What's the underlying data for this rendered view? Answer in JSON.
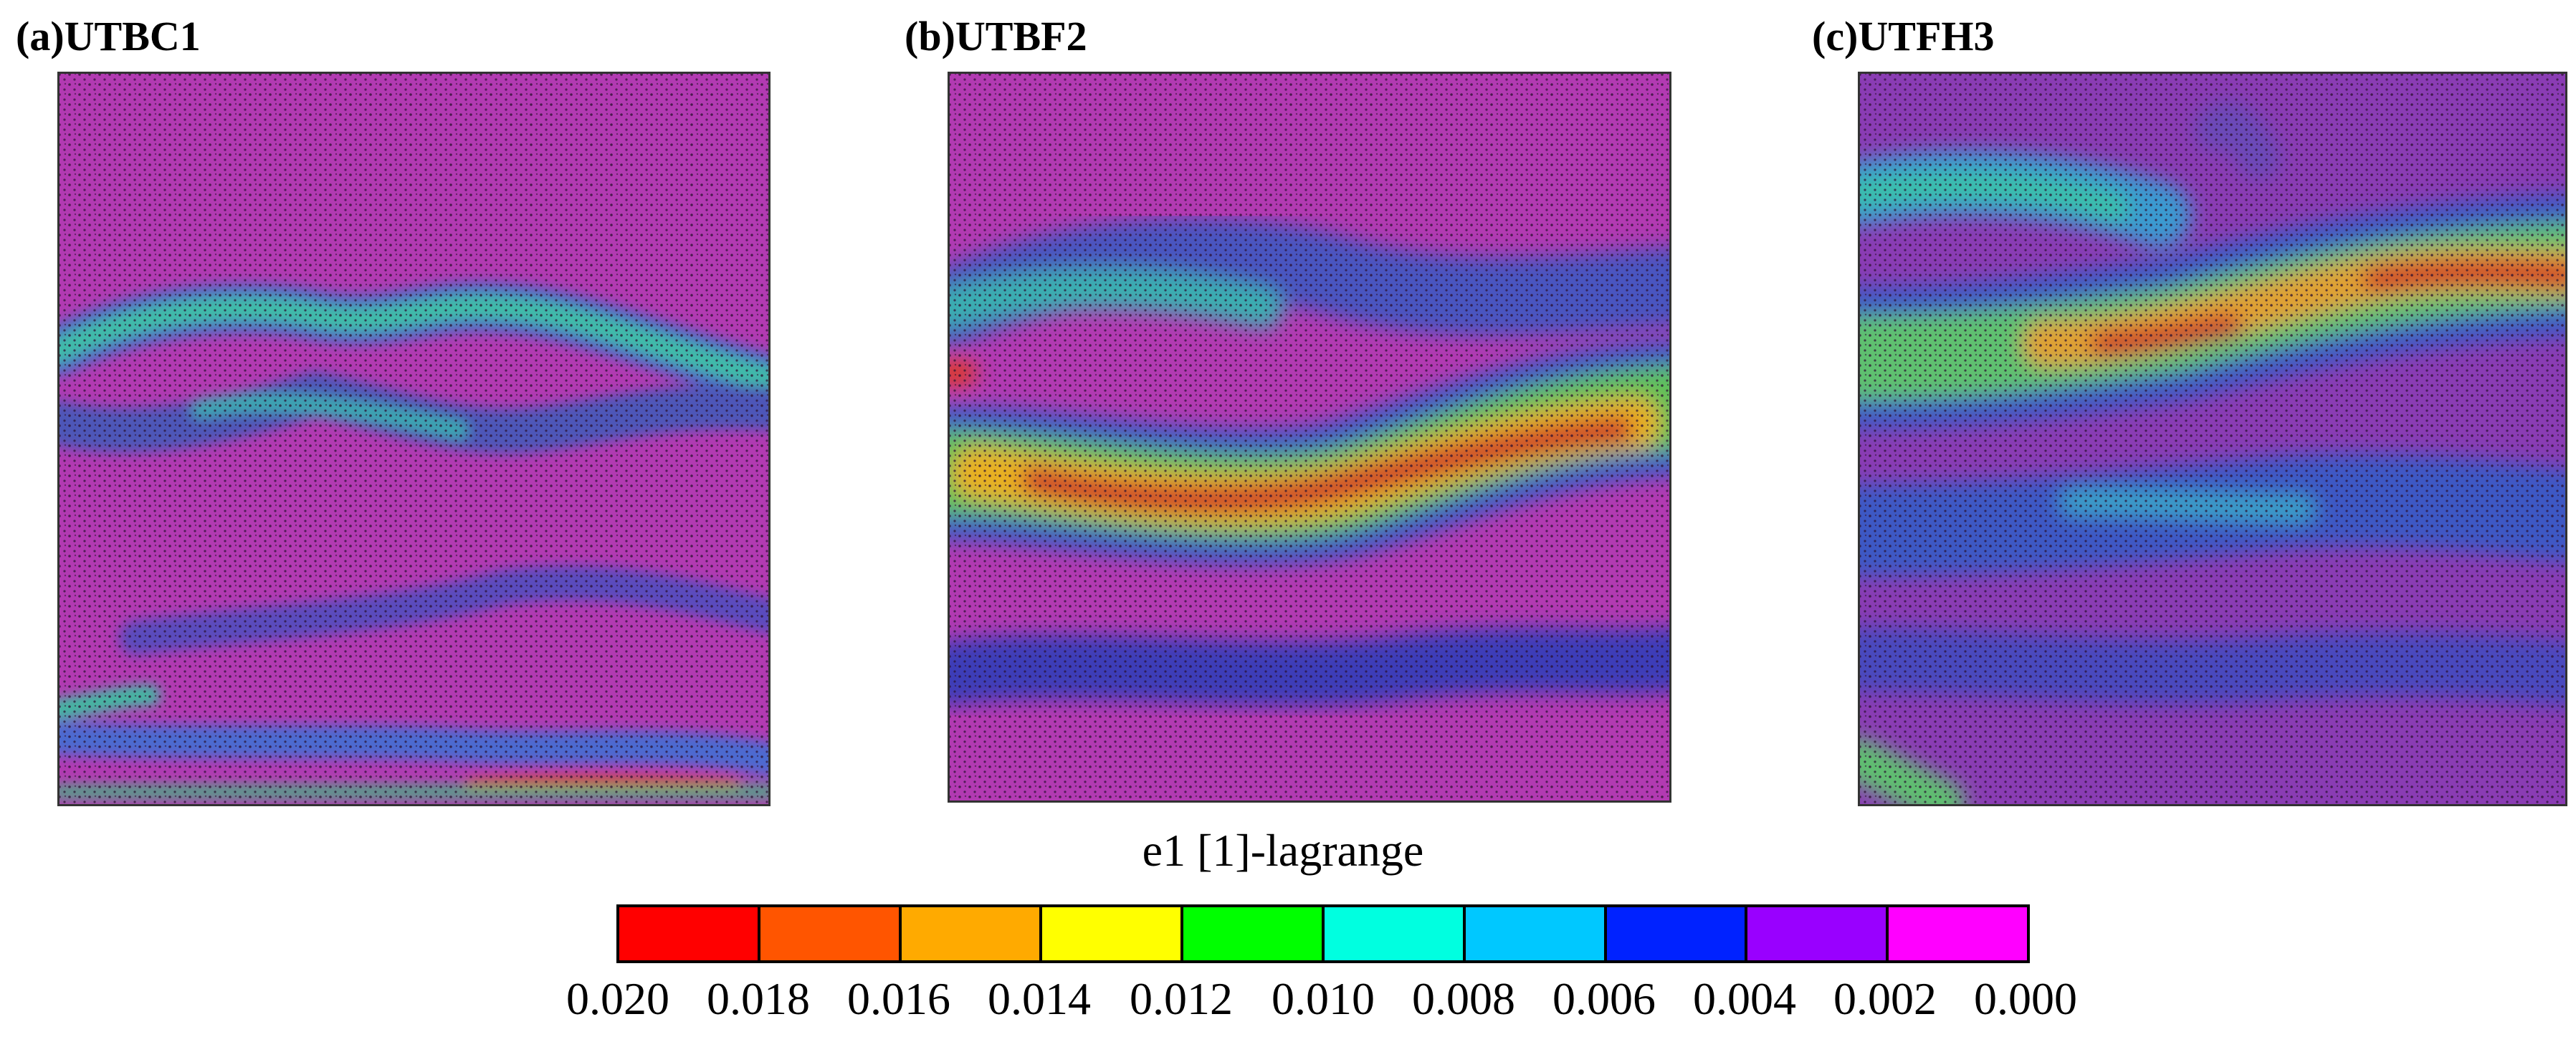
{
  "panels": [
    {
      "label": "(a)UTBC1"
    },
    {
      "label": "(b)UTBF2"
    },
    {
      "label": "(c)UTFH3"
    }
  ],
  "legend": {
    "title": "e1 [1]-lagrange",
    "colors": [
      "#ff0000",
      "#ff5500",
      "#ffaa00",
      "#ffff00",
      "#00ff00",
      "#00ffe0",
      "#00c8ff",
      "#0022ff",
      "#9900ff",
      "#ff00ff"
    ],
    "ticks": [
      "0.020",
      "0.018",
      "0.016",
      "0.014",
      "0.012",
      "0.010",
      "0.008",
      "0.006",
      "0.004",
      "0.002",
      "0.000"
    ]
  },
  "colors": {
    "background_field": "#b23ab2",
    "low_strain": "#6a3cb8",
    "medium_strain": "#3f7fd0",
    "high_strain": "#40c080",
    "peak_strain": "#cc2a2a"
  }
}
